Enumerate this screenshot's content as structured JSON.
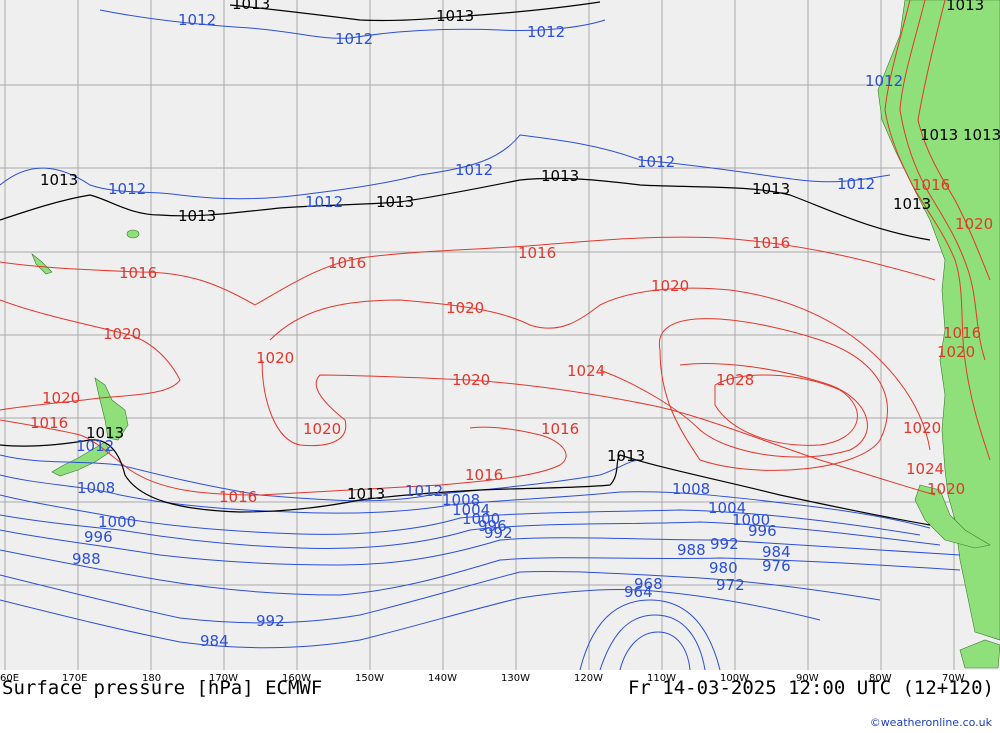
{
  "map": {
    "title": "Surface pressure [hPa] ECMWF",
    "valid_time": "Fr 14-03-2025 12:00 UTC (12+120)",
    "credit": "©weatheronline.co.uk",
    "longitude_labels": [
      "60E",
      "170E",
      "180",
      "170W",
      "160W",
      "150W",
      "140W",
      "130W",
      "120W",
      "110W",
      "100W",
      "90W",
      "80W",
      "70W"
    ],
    "colors": {
      "isobar_low": "#2b4fd8",
      "isobar_high": "#e3372c",
      "isobar_1013": "#000000",
      "land": "#8fe07a",
      "sea": "#efefef"
    },
    "isobar_labels": {
      "blue": [
        "1012",
        "1012",
        "1012",
        "1012",
        "1012",
        "1012",
        "1012",
        "1012",
        "1012",
        "1012",
        "1012",
        "1008",
        "1008",
        "1008",
        "1004",
        "1004",
        "1000",
        "1000",
        "1000",
        "996",
        "996",
        "996",
        "992",
        "992",
        "992",
        "988",
        "988",
        "984",
        "984",
        "980",
        "976",
        "972",
        "968",
        "964"
      ],
      "red": [
        "1016",
        "1016",
        "1016",
        "1016",
        "1016",
        "1016",
        "1016",
        "1016",
        "1020",
        "1020",
        "1020",
        "1020",
        "1020",
        "1020",
        "1020",
        "1020",
        "1020",
        "1020",
        "1024",
        "1024",
        "1028",
        "1016",
        "1020",
        "1016"
      ],
      "black": [
        "1013",
        "1013",
        "1013",
        "1013",
        "1013",
        "1013",
        "1013",
        "1013",
        "1013",
        "1013",
        "1013",
        "1013",
        "1013",
        "1013"
      ]
    }
  }
}
